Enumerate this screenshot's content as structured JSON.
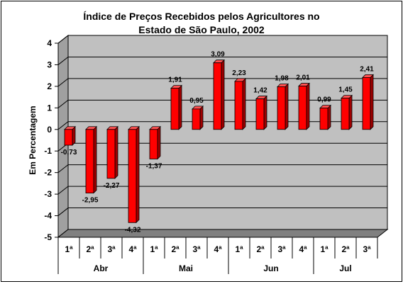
{
  "chart_data": {
    "type": "bar",
    "title_lines": [
      "Índice de Preços Recebidos pelos Agricultores no",
      "Estado de São Paulo, 2002"
    ],
    "ylabel": "Em Percentagem",
    "ylim": [
      -5,
      4
    ],
    "yticks": [
      "4",
      "3",
      "2",
      "1",
      "0",
      "-1",
      "-2",
      "-3",
      "-4",
      "-5"
    ],
    "grid": true,
    "categories": [
      "1ª",
      "2ª",
      "3ª",
      "4ª",
      "1ª",
      "2ª",
      "3ª",
      "4ª",
      "1ª",
      "2ª",
      "3ª",
      "4ª",
      "1ª",
      "2ª",
      "3ª"
    ],
    "groups": [
      {
        "label": "Abr",
        "count": 4
      },
      {
        "label": "Mai",
        "count": 4
      },
      {
        "label": "Jun",
        "count": 4
      },
      {
        "label": "Jul",
        "count": 3
      }
    ],
    "values": [
      -0.73,
      -2.95,
      -2.27,
      -4.32,
      -1.37,
      1.91,
      0.95,
      3.09,
      2.23,
      1.42,
      1.98,
      2.01,
      0.99,
      1.45,
      2.41
    ],
    "value_labels": [
      "-0,73",
      "-2,95",
      "-2,27",
      "-4,32",
      "-1,37",
      "1,91",
      "0,95",
      "3,09",
      "2,23",
      "1,42",
      "1,98",
      "2,01",
      "0,99",
      "1,45",
      "2,41"
    ],
    "colors": {
      "bar": "#ff0000",
      "bar_side": "#a00000",
      "bar_top": "#ff5050",
      "wall": "#c0c0c0",
      "floor": "#808080"
    }
  }
}
